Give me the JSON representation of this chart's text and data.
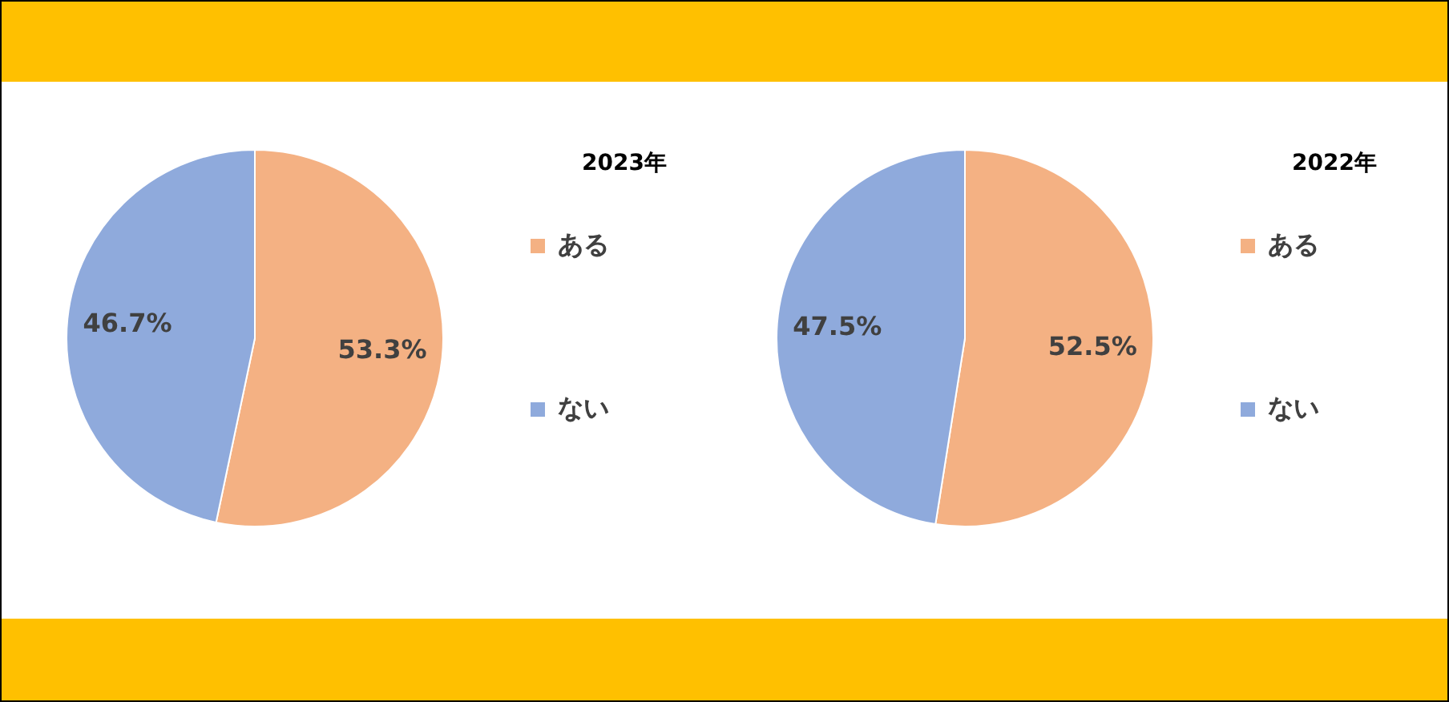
{
  "chart_data": [
    {
      "type": "pie",
      "title": "2023年",
      "categories": [
        "ある",
        "ない"
      ],
      "values": [
        53.3,
        46.7
      ],
      "colors": [
        "#f4b183",
        "#8faadc"
      ],
      "value_labels": [
        "53.3%",
        "46.7%"
      ],
      "legend": "right"
    },
    {
      "type": "pie",
      "title": "2022年",
      "categories": [
        "ある",
        "ない"
      ],
      "values": [
        52.5,
        47.5
      ],
      "colors": [
        "#f4b183",
        "#8faadc"
      ],
      "value_labels": [
        "52.5%",
        "47.5%"
      ],
      "legend": "right"
    }
  ]
}
